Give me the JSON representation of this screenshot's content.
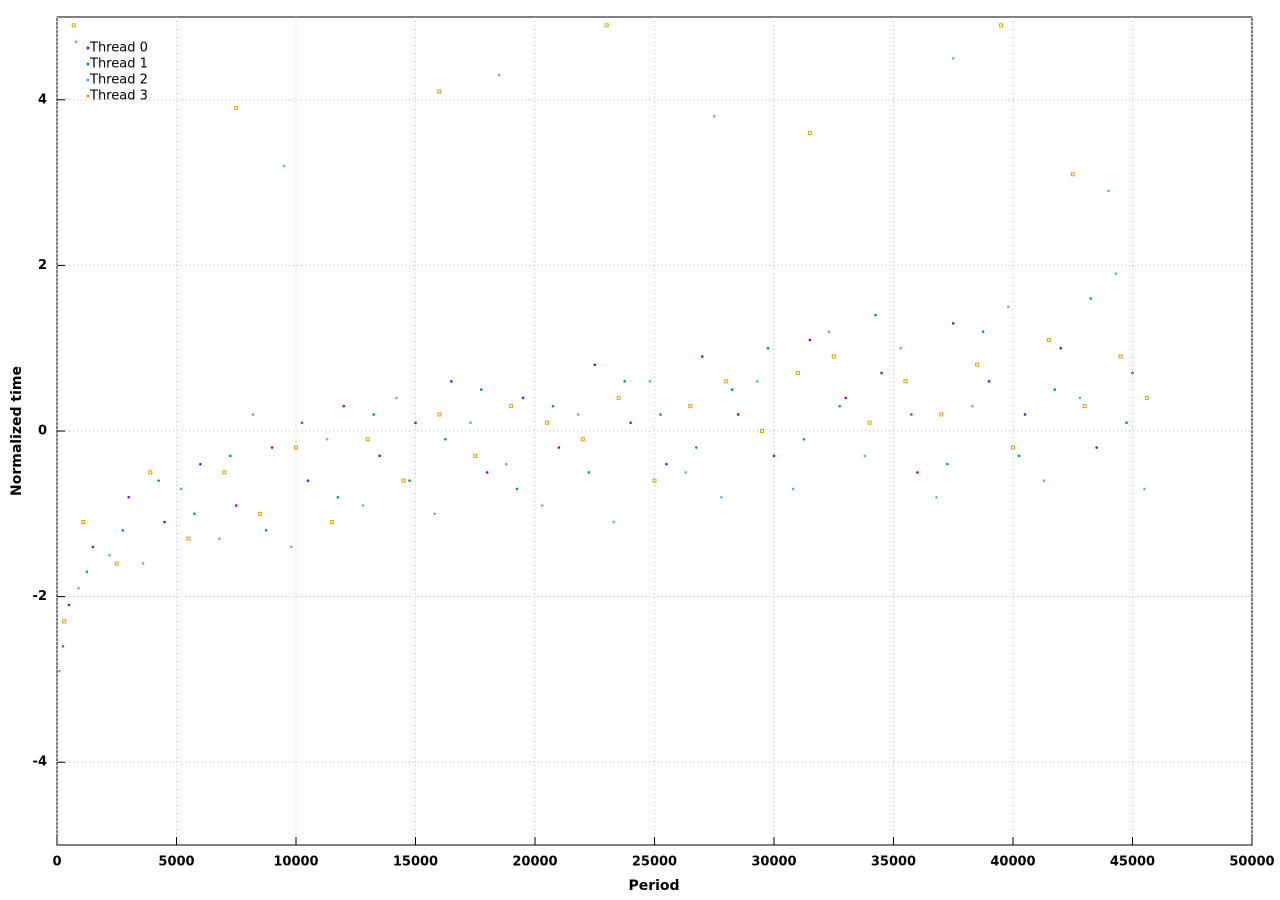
{
  "chart_data": {
    "type": "scatter",
    "x_label": "Period",
    "y_label": "Normalized time",
    "xlim": [
      0,
      50000
    ],
    "ylim": [
      -5,
      5
    ],
    "xticks": [
      0,
      5000,
      10000,
      15000,
      20000,
      25000,
      30000,
      35000,
      40000,
      45000,
      50000
    ],
    "yticks": [
      -4,
      -2,
      0,
      2,
      4
    ],
    "grid": true,
    "legend": "top-left",
    "series": [
      {
        "name": "Thread 0",
        "color": "#9400d3",
        "x": [
          500,
          1500,
          3000,
          4500,
          6000,
          7500,
          9000,
          10500,
          12000,
          13500,
          15000,
          16500,
          18000,
          19500,
          21000,
          22500,
          24000,
          25500,
          27000,
          28500,
          30000,
          31500,
          33000,
          34500,
          36000,
          37500,
          39000,
          40500,
          42000,
          43500,
          45000
        ],
        "values": [
          -2.1,
          -1.4,
          -0.8,
          -1.1,
          -0.4,
          -0.9,
          -0.2,
          -0.6,
          0.3,
          -0.3,
          0.1,
          0.6,
          -0.5,
          0.4,
          -0.2,
          0.8,
          0.1,
          -0.4,
          0.9,
          0.2,
          -0.3,
          1.1,
          0.4,
          0.7,
          -0.5,
          1.3,
          0.6,
          0.2,
          1.0,
          -0.2,
          0.7
        ]
      },
      {
        "name": "Thread 1",
        "color": "#009e73",
        "x": [
          250,
          1250,
          2750,
          4250,
          5750,
          7250,
          8750,
          10250,
          11750,
          13250,
          14750,
          16250,
          17750,
          19250,
          20750,
          22250,
          23750,
          25250,
          26750,
          28250,
          29750,
          31250,
          32750,
          34250,
          35750,
          37250,
          38750,
          40250,
          41750,
          43250,
          44750
        ],
        "values": [
          -2.6,
          -1.7,
          -1.2,
          -0.6,
          -1.0,
          -0.3,
          -1.2,
          0.1,
          -0.8,
          0.2,
          -0.6,
          -0.1,
          0.5,
          -0.7,
          0.3,
          -0.5,
          0.6,
          0.2,
          -0.2,
          0.5,
          1.0,
          -0.1,
          0.3,
          1.4,
          0.2,
          -0.4,
          1.2,
          -0.3,
          0.5,
          1.6,
          0.1
        ]
      },
      {
        "name": "Thread 2",
        "color": "#56b4e9",
        "x": [
          100,
          900,
          2200,
          3600,
          5200,
          6800,
          8200,
          9800,
          11300,
          12800,
          14200,
          15800,
          17300,
          18800,
          20300,
          21800,
          23300,
          24800,
          26300,
          27800,
          29300,
          30800,
          32300,
          33800,
          35300,
          36800,
          38300,
          39800,
          41300,
          42800,
          44300,
          45500,
          800,
          9500,
          18500,
          27500,
          37500,
          44000
        ],
        "values": [
          -2.9,
          -1.9,
          -1.5,
          -1.6,
          -0.7,
          -1.3,
          0.2,
          -1.4,
          -0.1,
          -0.9,
          0.4,
          -1.0,
          0.1,
          -0.4,
          -0.9,
          0.2,
          -1.1,
          0.6,
          -0.5,
          -0.8,
          0.6,
          -0.7,
          1.2,
          -0.3,
          1.0,
          -0.8,
          0.3,
          1.5,
          -0.6,
          0.4,
          1.9,
          -0.7,
          4.7,
          3.2,
          4.3,
          3.8,
          4.5,
          2.9
        ]
      },
      {
        "name": "Thread 3",
        "color": "#e69f00",
        "x": [
          300,
          1100,
          2500,
          3900,
          5500,
          7000,
          8500,
          10000,
          11500,
          13000,
          14500,
          16000,
          17500,
          19000,
          20500,
          22000,
          23500,
          25000,
          26500,
          28000,
          29500,
          31000,
          32500,
          34000,
          35500,
          37000,
          38500,
          40000,
          41500,
          43000,
          44500,
          45600,
          700,
          7500,
          16000,
          23000,
          31500,
          39500,
          42500
        ],
        "values": [
          -2.3,
          -1.1,
          -1.6,
          -0.5,
          -1.3,
          -0.5,
          -1.0,
          -0.2,
          -1.1,
          -0.1,
          -0.6,
          0.2,
          -0.3,
          0.3,
          0.1,
          -0.1,
          0.4,
          -0.6,
          0.3,
          0.6,
          0.0,
          0.7,
          0.9,
          0.1,
          0.6,
          0.2,
          0.8,
          -0.2,
          1.1,
          0.3,
          0.9,
          0.4,
          4.9,
          3.9,
          4.1,
          4.9,
          3.6,
          4.9,
          3.1
        ]
      }
    ]
  }
}
